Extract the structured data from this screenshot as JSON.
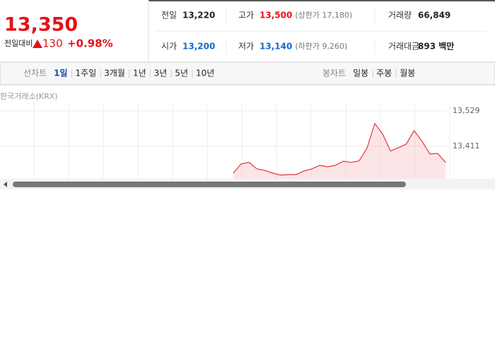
{
  "quote": {
    "price": "13,350",
    "change_label": "전일대비",
    "change": "130",
    "change_rate": "+0.98%"
  },
  "stats": [
    {
      "label": "전일",
      "value": "13,220"
    },
    {
      "label": "고가",
      "value": "13,500",
      "note": "(상한가 17,180)"
    },
    {
      "label": "거래량",
      "value": "66,849"
    },
    {
      "label": "시가",
      "value": "13,200"
    },
    {
      "label": "저가",
      "value": "13,140",
      "note": "(하한가 9,260)"
    },
    {
      "label": "거래대금",
      "value": "893 백만"
    }
  ],
  "tabs": {
    "line_label": "선차트",
    "line_periods": [
      "1일",
      "1주일",
      "3개월",
      "1년",
      "3년",
      "5년",
      "10년"
    ],
    "candle_label": "봉차트",
    "candle_periods": [
      "일봉",
      "주봉",
      "월봉"
    ]
  },
  "chart_data": {
    "type": "line",
    "source": "한국거래소(KRX)",
    "series": [
      {
        "color": "#e8333b",
        "values": [
          13321,
          13352,
          13357,
          13335,
          13330,
          13321,
          13314,
          13316,
          13316,
          13328,
          13335,
          13347,
          13342,
          13347,
          13361,
          13357,
          13362,
          13404,
          13487,
          13452,
          13395,
          13406,
          13418,
          13463,
          13428,
          13385,
          13387,
          13357
        ]
      }
    ],
    "ylim": [
      13302,
      13553
    ],
    "yticks": [
      {
        "value": 13529,
        "label": "13,529"
      },
      {
        "value": 13411,
        "label": "13,411"
      }
    ]
  }
}
